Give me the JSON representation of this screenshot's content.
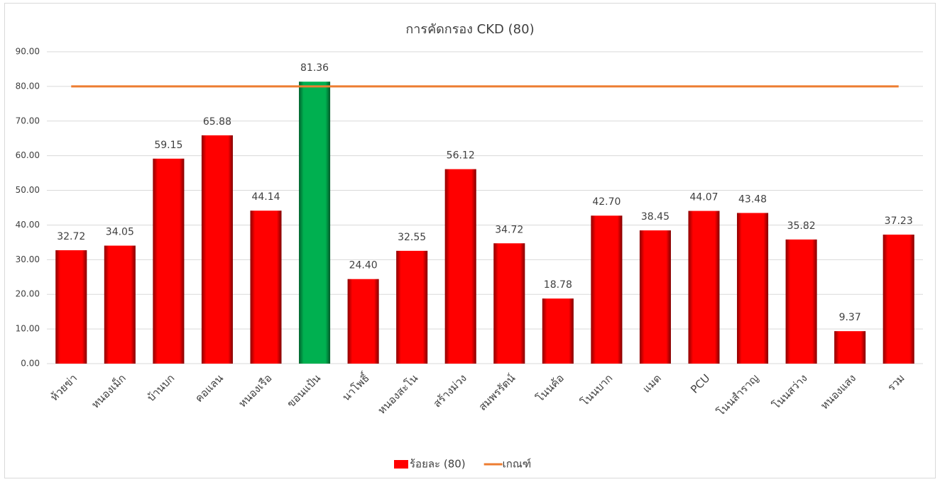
{
  "chart_data": {
    "type": "bar",
    "title": "การคัดกรอง CKD (80)",
    "categories": [
      "ห้วยข่า",
      "หนองเม็ก",
      "บ้านบก",
      "คอแลน",
      "หนองเรือ",
      "ขอนแป้น",
      "นาโพธิ์",
      "หนองสะโน",
      "สร้างม่วง",
      "สมพรรัตน์",
      "โนนค้อ",
      "โนนบาก",
      "แมด",
      "PCU",
      "โนนสำราญ",
      "โนนสว่าง",
      "หนองแสง",
      "รวม"
    ],
    "series": [
      {
        "name": "ร้อยละ (80)",
        "type": "bar",
        "color": "#ff0000",
        "colors": [
          "#ff0000",
          "#ff0000",
          "#ff0000",
          "#ff0000",
          "#ff0000",
          "#00b050",
          "#ff0000",
          "#ff0000",
          "#ff0000",
          "#ff0000",
          "#ff0000",
          "#ff0000",
          "#ff0000",
          "#ff0000",
          "#ff0000",
          "#ff0000",
          "#ff0000",
          "#ff0000"
        ],
        "values": [
          32.72,
          34.05,
          59.15,
          65.88,
          44.14,
          81.36,
          24.4,
          32.55,
          56.12,
          34.72,
          18.78,
          42.7,
          38.45,
          44.07,
          43.48,
          35.82,
          9.37,
          37.23
        ],
        "value_labels": [
          "32.72",
          "34.05",
          "59.15",
          "65.88",
          "44.14",
          "81.36",
          "24.40",
          "32.55",
          "56.12",
          "34.72",
          "18.78",
          "42.70",
          "38.45",
          "44.07",
          "43.48",
          "35.82",
          "9.37",
          "37.23"
        ]
      },
      {
        "name": "เกณฑ์",
        "type": "line",
        "color": "#ed7d31",
        "values": [
          80,
          80,
          80,
          80,
          80,
          80,
          80,
          80,
          80,
          80,
          80,
          80,
          80,
          80,
          80,
          80,
          80,
          80
        ]
      }
    ],
    "ylim": [
      0,
      90
    ],
    "yticks": [
      {
        "value": 0,
        "label": "0.00"
      },
      {
        "value": 10,
        "label": "10.00"
      },
      {
        "value": 20,
        "label": "20.00"
      },
      {
        "value": 30,
        "label": "30.00"
      },
      {
        "value": 40,
        "label": "40.00"
      },
      {
        "value": 50,
        "label": "50.00"
      },
      {
        "value": 60,
        "label": "60.00"
      },
      {
        "value": 70,
        "label": "70.00"
      },
      {
        "value": 80,
        "label": "80.00"
      },
      {
        "value": 90,
        "label": "90.00"
      }
    ],
    "grid": true,
    "legend": "bottom"
  }
}
